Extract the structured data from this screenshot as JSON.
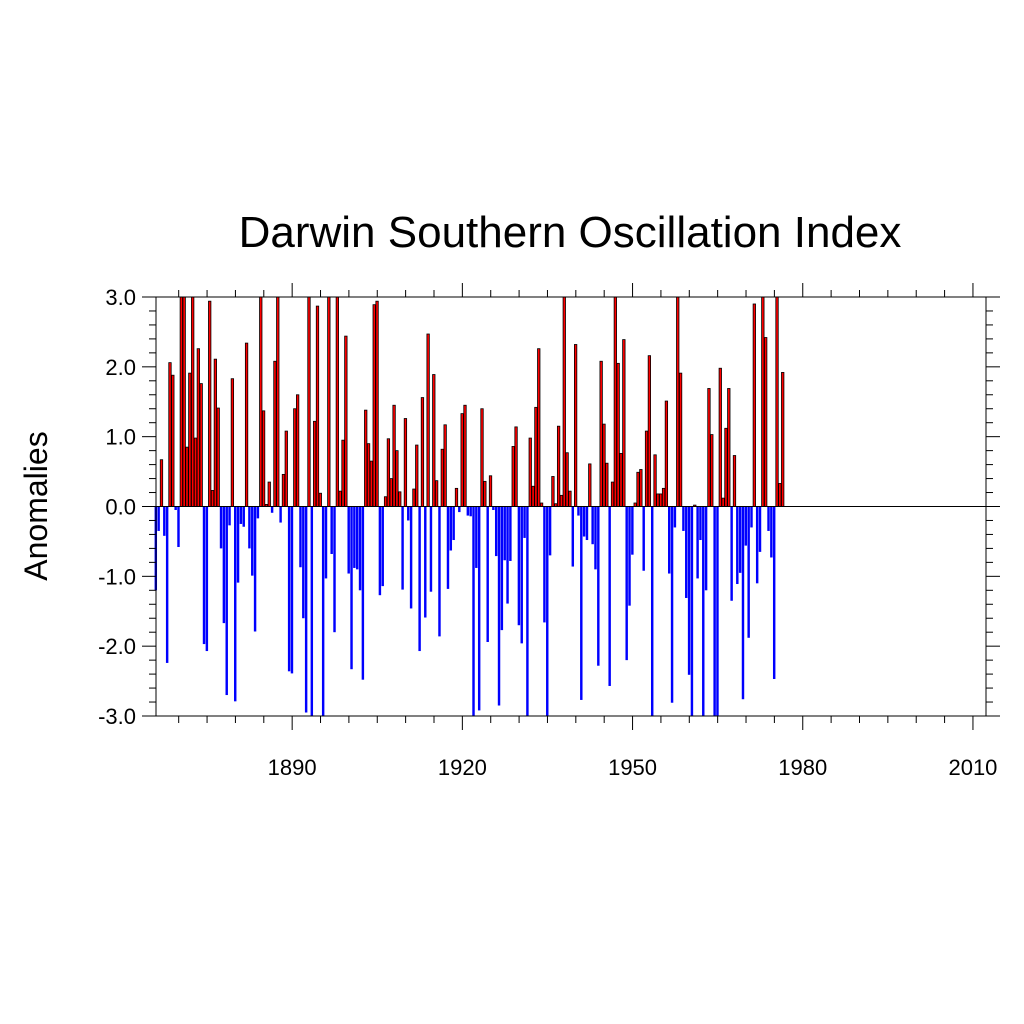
{
  "chart_data": {
    "type": "bar",
    "title": "Darwin Southern Oscillation Index",
    "ylabel": "Anomalies",
    "xlabel": "",
    "xlim": [
      1866,
      2012.3
    ],
    "ylim": [
      -3.0,
      3.0
    ],
    "y_ticks": [
      "3.0",
      "2.0",
      "1.0",
      "0.0",
      "-1.0",
      "-2.0",
      "-3.0"
    ],
    "x_ticks": [
      "1890",
      "1920",
      "1950",
      "1980",
      "2010"
    ],
    "colors": {
      "positive": "#ff0000",
      "negative": "#0000ff",
      "positive_edge": "#000000"
    },
    "x_start": 1866,
    "x_step": 0.5,
    "values": [
      -1.2,
      -0.35,
      0.67,
      -0.42,
      -2.24,
      2.06,
      1.88,
      -0.05,
      -0.58,
      3.0,
      3.0,
      0.85,
      1.91,
      3.0,
      0.98,
      2.26,
      1.76,
      -1.97,
      -2.07,
      2.94,
      0.23,
      2.11,
      1.41,
      -0.6,
      -1.67,
      -2.7,
      -0.27,
      1.83,
      -2.79,
      -1.09,
      -0.25,
      -0.29,
      2.34,
      -0.6,
      -0.99,
      -1.79,
      -0.17,
      3.0,
      1.37,
      0.03,
      0.35,
      -0.09,
      2.08,
      3.0,
      -0.23,
      0.46,
      1.08,
      -2.36,
      -2.39,
      1.4,
      1.6,
      -0.87,
      -1.6,
      -2.95,
      3.0,
      -3.0,
      1.22,
      2.87,
      0.19,
      -3.0,
      -1.03,
      3.0,
      -0.68,
      -1.8,
      3.0,
      0.22,
      0.95,
      2.44,
      -0.96,
      -2.33,
      -0.88,
      -0.9,
      -1.2,
      -2.48,
      1.38,
      0.9,
      0.65,
      2.89,
      2.94,
      -1.27,
      -1.14,
      0.14,
      0.97,
      0.4,
      1.45,
      0.8,
      0.21,
      -1.19,
      1.26,
      -0.2,
      -1.46,
      0.25,
      0.88,
      -2.07,
      1.56,
      -1.59,
      2.47,
      -1.22,
      1.89,
      0.37,
      -1.86,
      0.82,
      1.17,
      -1.18,
      -0.63,
      -0.48,
      0.26,
      -0.08,
      1.33,
      1.45,
      -0.13,
      -0.14,
      -3.0,
      -0.88,
      -2.92,
      1.4,
      0.36,
      -1.94,
      0.44,
      -0.05,
      -0.71,
      -2.85,
      -1.77,
      -0.77,
      -1.39,
      -0.78,
      0.86,
      1.14,
      -1.7,
      -1.96,
      -0.45,
      -3.0,
      0.98,
      0.29,
      1.42,
      2.26,
      0.05,
      -1.66,
      -3.0,
      -0.7,
      0.43,
      0.04,
      1.15,
      0.16,
      3.0,
      0.77,
      0.22,
      -0.86,
      2.32,
      -0.13,
      -2.77,
      -0.43,
      -0.48,
      0.61,
      -0.54,
      -0.9,
      -2.28,
      2.08,
      1.18,
      0.62,
      -2.57,
      0.35,
      3.0,
      2.05,
      0.76,
      2.39,
      -2.2,
      -1.42,
      -0.69,
      0.05,
      0.49,
      0.53,
      -0.92,
      1.08,
      2.16,
      -3.0,
      0.74,
      0.18,
      0.18,
      0.26,
      1.51,
      -0.96,
      -2.81,
      -0.3,
      3.0,
      1.91,
      -0.35,
      -1.31,
      -2.41,
      -3.0,
      0.02,
      -1.03,
      -0.48,
      -3.0,
      -1.2,
      1.69,
      1.03,
      -3.0,
      -3.0,
      1.98,
      0.12,
      1.12,
      1.69,
      -1.35,
      0.73,
      -1.11,
      -0.95,
      -2.76,
      -0.56,
      -1.88,
      -0.3,
      2.9,
      -1.1,
      -0.65,
      3.0,
      2.42,
      -0.35,
      -0.73,
      -2.47,
      3.0,
      0.33,
      1.92
    ]
  }
}
